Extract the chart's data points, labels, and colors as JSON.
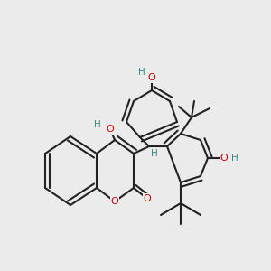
{
  "background_color": "#ebebeb",
  "bond_color": "#222222",
  "oxygen_color": "#cc0000",
  "hydrogen_color": "#3a8888",
  "figsize": [
    3.0,
    3.0
  ],
  "dpi": 100,
  "xlim": [
    0.0,
    1.0
  ],
  "ylim": [
    0.0,
    1.0
  ]
}
